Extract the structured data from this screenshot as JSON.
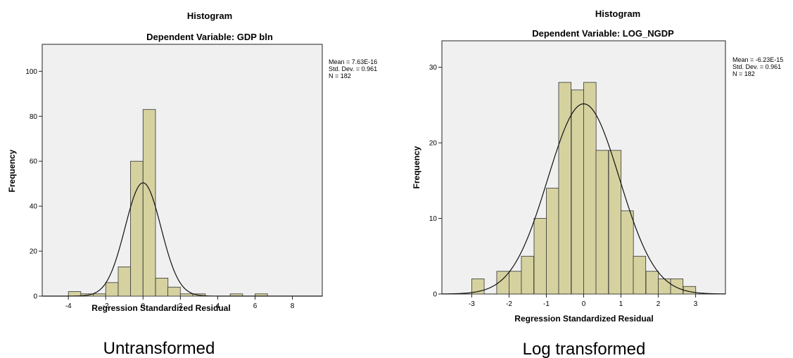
{
  "chart_data": [
    {
      "type": "bar",
      "title": "Histogram",
      "subtitle": "Dependent Variable: GDP bln",
      "xlabel": "Regression Standardized Residual",
      "ylabel": "Frequency",
      "xlim": [
        -5.4,
        9.6
      ],
      "ylim": [
        0,
        112
      ],
      "xticks": [
        -4,
        -2,
        0,
        2,
        4,
        6,
        8
      ],
      "yticks": [
        0,
        20,
        40,
        60,
        80,
        100
      ],
      "bin_width": 0.667,
      "bins": [
        {
          "x0": -4.0,
          "value": 2
        },
        {
          "x0": -3.33,
          "value": 1
        },
        {
          "x0": -2.67,
          "value": 1
        },
        {
          "x0": -2.0,
          "value": 6
        },
        {
          "x0": -1.33,
          "value": 13
        },
        {
          "x0": -0.67,
          "value": 60
        },
        {
          "x0": 0.0,
          "value": 83
        },
        {
          "x0": 0.67,
          "value": 8
        },
        {
          "x0": 1.33,
          "value": 4
        },
        {
          "x0": 2.0,
          "value": 1
        },
        {
          "x0": 2.67,
          "value": 1
        },
        {
          "x0": 4.67,
          "value": 1
        },
        {
          "x0": 6.0,
          "value": 1
        }
      ],
      "normal_curve": {
        "mean": 0,
        "sd": 0.961,
        "n": 182
      },
      "stats": [
        "Mean = 7.63E-16",
        "Std. Dev. = 0.961",
        "N = 182"
      ],
      "caption": "Untransformed"
    },
    {
      "type": "bar",
      "title": "Histogram",
      "subtitle": "Dependent Variable: LOG_NGDP",
      "xlabel": "Regression Standardized Residual",
      "ylabel": "Frequency",
      "xlim": [
        -3.8,
        3.8
      ],
      "ylim": [
        0,
        33.5
      ],
      "xticks": [
        -3,
        -2,
        -1,
        0,
        1,
        2,
        3
      ],
      "yticks": [
        0,
        10,
        20,
        30
      ],
      "bin_width": 0.333,
      "bins": [
        {
          "x0": -3.0,
          "value": 2
        },
        {
          "x0": -2.33,
          "value": 3
        },
        {
          "x0": -2.0,
          "value": 3
        },
        {
          "x0": -1.67,
          "value": 5
        },
        {
          "x0": -1.33,
          "value": 10
        },
        {
          "x0": -1.0,
          "value": 14
        },
        {
          "x0": -0.67,
          "value": 28
        },
        {
          "x0": -0.33,
          "value": 27
        },
        {
          "x0": 0.0,
          "value": 28
        },
        {
          "x0": 0.33,
          "value": 19
        },
        {
          "x0": 0.67,
          "value": 19
        },
        {
          "x0": 1.0,
          "value": 11
        },
        {
          "x0": 1.33,
          "value": 5
        },
        {
          "x0": 1.67,
          "value": 3
        },
        {
          "x0": 2.0,
          "value": 2
        },
        {
          "x0": 2.33,
          "value": 2
        },
        {
          "x0": 2.67,
          "value": 1
        }
      ],
      "normal_curve": {
        "mean": 0,
        "sd": 0.961,
        "n": 182
      },
      "stats": [
        "Mean = -6.23E-15",
        "Std. Dev. = 0.961",
        "N = 182"
      ],
      "caption": "Log transformed"
    }
  ]
}
